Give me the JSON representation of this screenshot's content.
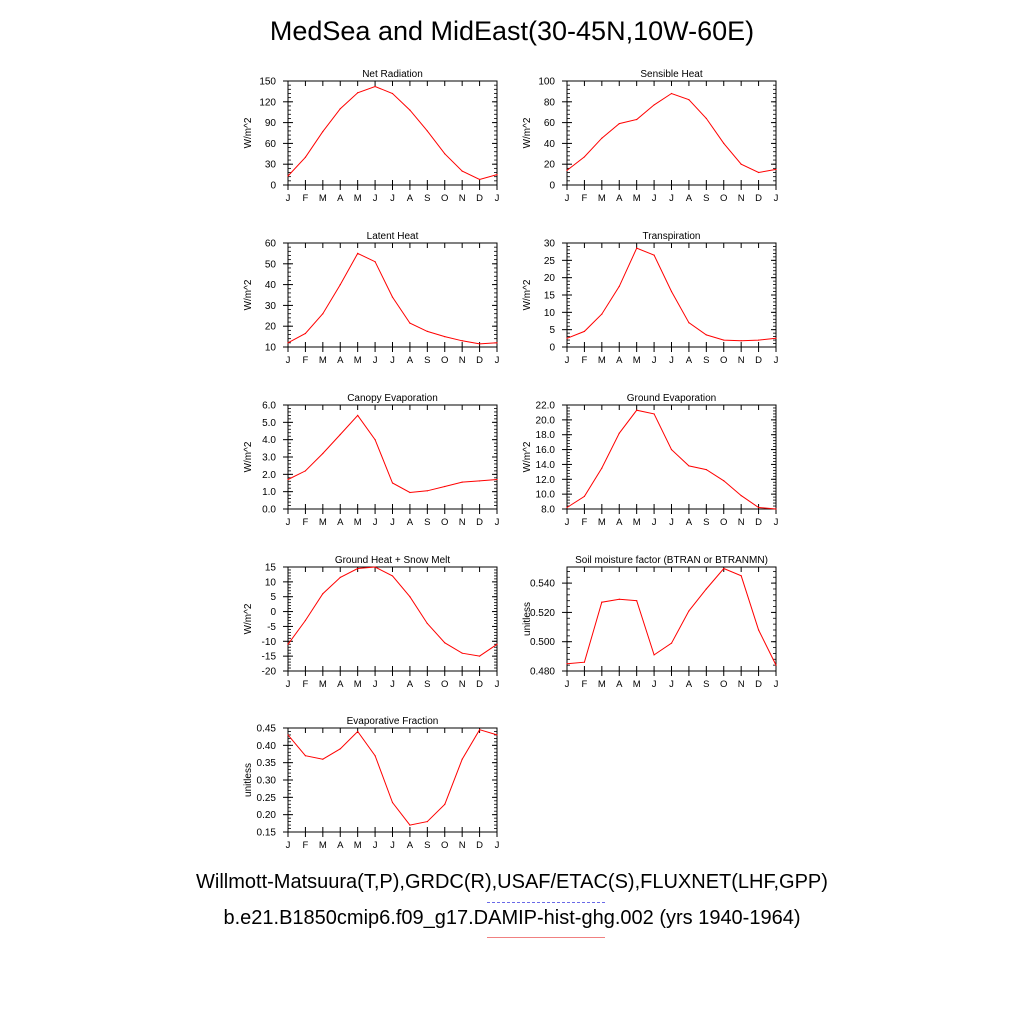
{
  "page": {
    "title": "MedSea and MidEast(30-45N,10W-60E)",
    "footer_obs": "Willmott-Matsuura(T,P),GRDC(R),USAF/ETAC(S),FLUXNET(LHF,GPP)",
    "footer_model": "b.e21.B1850cmip6.f09_g17.DAMIP-hist-ghg.002 (yrs 1940-1964)",
    "colors": {
      "series": "#ff0000",
      "obs_legend": "#6a6ae8",
      "model_legend": "#f08080"
    }
  },
  "chart_data": [
    {
      "type": "line",
      "title": "Net Radiation",
      "ylabel": "W/m^2",
      "categories": [
        "J",
        "F",
        "M",
        "A",
        "M",
        "J",
        "J",
        "A",
        "S",
        "O",
        "N",
        "D",
        "J"
      ],
      "values": [
        13,
        40,
        77,
        110,
        133,
        142,
        132,
        108,
        78,
        45,
        20,
        8,
        15
      ],
      "ylim": [
        0,
        150
      ],
      "yticks": [
        "0",
        "30",
        "60",
        "90",
        "120",
        "150"
      ],
      "ytick_values": [
        0,
        30,
        60,
        90,
        120,
        150
      ]
    },
    {
      "type": "line",
      "title": "Sensible Heat",
      "ylabel": "W/m^2",
      "categories": [
        "J",
        "F",
        "M",
        "A",
        "M",
        "J",
        "J",
        "A",
        "S",
        "O",
        "N",
        "D",
        "J"
      ],
      "values": [
        14,
        27,
        45,
        59,
        63,
        77,
        88,
        82,
        64,
        40,
        20,
        12,
        15
      ],
      "ylim": [
        0,
        100
      ],
      "yticks": [
        "0",
        "20",
        "40",
        "60",
        "80",
        "100"
      ],
      "ytick_values": [
        0,
        20,
        40,
        60,
        80,
        100
      ]
    },
    {
      "type": "line",
      "title": "Latent Heat",
      "ylabel": "W/m^2",
      "categories": [
        "J",
        "F",
        "M",
        "A",
        "M",
        "J",
        "J",
        "A",
        "S",
        "O",
        "N",
        "D",
        "J"
      ],
      "values": [
        12,
        16.5,
        26,
        40,
        55,
        51,
        34,
        21.5,
        17.5,
        15,
        13,
        11.5,
        12
      ],
      "ylim": [
        10,
        60
      ],
      "yticks": [
        "10",
        "20",
        "30",
        "40",
        "50",
        "60"
      ],
      "ytick_values": [
        10,
        20,
        30,
        40,
        50,
        60
      ]
    },
    {
      "type": "line",
      "title": "Transpiration",
      "ylabel": "W/m^2",
      "categories": [
        "J",
        "F",
        "M",
        "A",
        "M",
        "J",
        "J",
        "A",
        "S",
        "O",
        "N",
        "D",
        "J"
      ],
      "values": [
        2.5,
        4.5,
        9.5,
        17.5,
        28.5,
        26.5,
        16,
        7,
        3.5,
        2,
        1.8,
        2,
        2.5
      ],
      "ylim": [
        0,
        30
      ],
      "yticks": [
        "0",
        "5",
        "10",
        "15",
        "20",
        "25",
        "30"
      ],
      "ytick_values": [
        0,
        5,
        10,
        15,
        20,
        25,
        30
      ]
    },
    {
      "type": "line",
      "title": "Canopy Evaporation",
      "ylabel": "W/m^2",
      "categories": [
        "J",
        "F",
        "M",
        "A",
        "M",
        "J",
        "J",
        "A",
        "S",
        "O",
        "N",
        "D",
        "J"
      ],
      "values": [
        1.7,
        2.2,
        3.2,
        4.3,
        5.4,
        4.0,
        1.5,
        0.95,
        1.05,
        1.3,
        1.55,
        1.62,
        1.7
      ],
      "ylim": [
        0,
        6
      ],
      "yticks": [
        "0.0",
        "1.0",
        "2.0",
        "3.0",
        "4.0",
        "5.0",
        "6.0"
      ],
      "ytick_values": [
        0,
        1,
        2,
        3,
        4,
        5,
        6
      ]
    },
    {
      "type": "line",
      "title": "Ground Evaporation",
      "ylabel": "W/m^2",
      "categories": [
        "J",
        "F",
        "M",
        "A",
        "M",
        "J",
        "J",
        "A",
        "S",
        "O",
        "N",
        "D",
        "J"
      ],
      "values": [
        8.2,
        9.7,
        13.5,
        18.2,
        21.3,
        20.8,
        16.0,
        13.8,
        13.3,
        11.8,
        9.8,
        8.2,
        8.0
      ],
      "ylim": [
        8,
        22
      ],
      "yticks": [
        "8.0",
        "10.0",
        "12.0",
        "14.0",
        "16.0",
        "18.0",
        "20.0",
        "22.0"
      ],
      "ytick_values": [
        8,
        10,
        12,
        14,
        16,
        18,
        20,
        22
      ]
    },
    {
      "type": "line",
      "title": "Ground Heat + Snow Melt",
      "ylabel": "W/m^2",
      "categories": [
        "J",
        "F",
        "M",
        "A",
        "M",
        "J",
        "J",
        "A",
        "S",
        "O",
        "N",
        "D",
        "J"
      ],
      "values": [
        -11,
        -3,
        6,
        11.5,
        14.5,
        15,
        12,
        5,
        -4,
        -10.5,
        -14,
        -15,
        -11
      ],
      "ylim": [
        -20,
        15
      ],
      "yticks": [
        "-20",
        "-15",
        "-10",
        "-5",
        "0",
        "5",
        "10",
        "15"
      ],
      "ytick_values": [
        -20,
        -15,
        -10,
        -5,
        0,
        5,
        10,
        15
      ]
    },
    {
      "type": "line",
      "title": "Soil moisture factor (BTRAN or BTRANMN)",
      "ylabel": "unitless",
      "categories": [
        "J",
        "F",
        "M",
        "A",
        "M",
        "J",
        "J",
        "A",
        "S",
        "O",
        "N",
        "D",
        "J"
      ],
      "values": [
        0.485,
        0.486,
        0.527,
        0.529,
        0.528,
        0.491,
        0.499,
        0.521,
        0.536,
        0.55,
        0.545,
        0.508,
        0.484
      ],
      "ylim": [
        0.48,
        0.551
      ],
      "yticks": [
        "0.480",
        "0.500",
        "0.520",
        "0.540"
      ],
      "ytick_values": [
        0.48,
        0.5,
        0.52,
        0.54
      ]
    },
    {
      "type": "line",
      "title": "Evaporative Fraction",
      "ylabel": "unitless",
      "categories": [
        "J",
        "F",
        "M",
        "A",
        "M",
        "J",
        "J",
        "A",
        "S",
        "O",
        "N",
        "D",
        "J"
      ],
      "values": [
        0.43,
        0.37,
        0.36,
        0.39,
        0.44,
        0.37,
        0.235,
        0.17,
        0.18,
        0.23,
        0.36,
        0.445,
        0.43
      ],
      "ylim": [
        0.15,
        0.45
      ],
      "yticks": [
        "0.15",
        "0.20",
        "0.25",
        "0.30",
        "0.35",
        "0.40",
        "0.45"
      ],
      "ytick_values": [
        0.15,
        0.2,
        0.25,
        0.3,
        0.35,
        0.4,
        0.45
      ]
    }
  ]
}
